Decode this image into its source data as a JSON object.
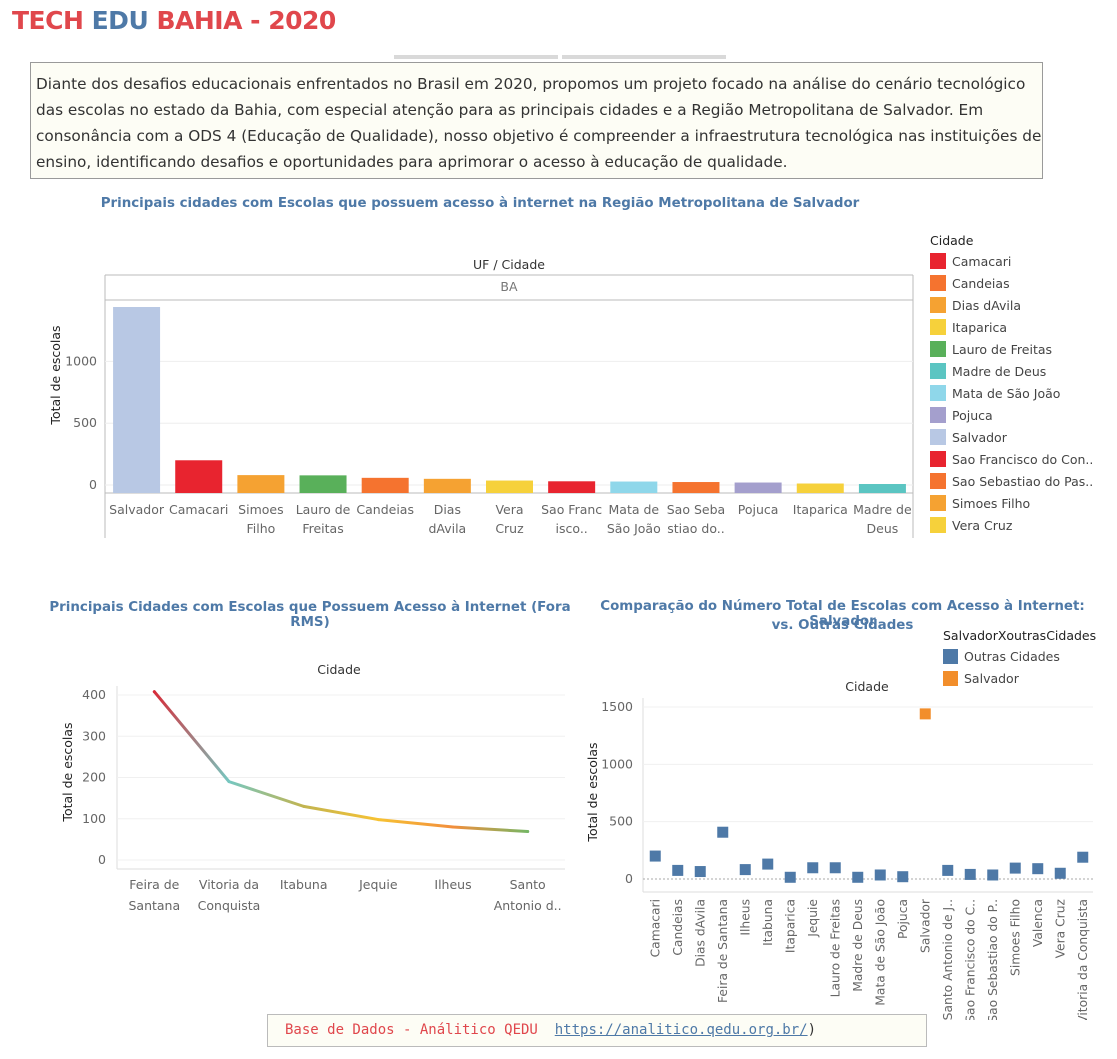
{
  "header": {
    "title_part1": "TECH ",
    "title_part2": "EDU",
    "title_part3": " BAHIA - 2020"
  },
  "intro": {
    "line1": "Diante dos desafios educacionais enfrentados no Brasil em 2020, propomos um projeto focado na análise do cenário tecnológico",
    "line2": "das escolas no estado da Bahia, com especial atenção para as principais cidades e a Região Metropolitana de Salvador. Em",
    "line3": "consonância com a ODS 4 (Educação de Qualidade), nosso objetivo é compreender a infraestrutura tecnológica nas instituições de",
    "line4": "ensino, identificando desafios e oportunidades para aprimorar o acesso à educação de qualidade."
  },
  "chart1_legend": {
    "title": "Cidade",
    "items": [
      {
        "label": "Camacari",
        "color": "#e8242f"
      },
      {
        "label": "Candeias",
        "color": "#f5732f"
      },
      {
        "label": "Dias dAvila",
        "color": "#f5a232"
      },
      {
        "label": "Itaparica",
        "color": "#f6d13b"
      },
      {
        "label": "Lauro de Freitas",
        "color": "#59b05a"
      },
      {
        "label": "Madre de Deus",
        "color": "#5bc5c2"
      },
      {
        "label": "Mata de São João",
        "color": "#8fd7ea"
      },
      {
        "label": "Pojuca",
        "color": "#a49fcd"
      },
      {
        "label": "Salvador",
        "color": "#b8c8e4"
      },
      {
        "label": "Sao Francisco do Con..",
        "color": "#e8242f"
      },
      {
        "label": "Sao Sebastiao do Pas..",
        "color": "#f5732f"
      },
      {
        "label": "Simoes Filho",
        "color": "#f5a232"
      },
      {
        "label": "Vera Cruz",
        "color": "#f6d13b"
      }
    ]
  },
  "chart3_legend": {
    "title": "SalvadorXoutrasCidades",
    "items": [
      {
        "label": "Outras Cidades",
        "color": "#4e79a7"
      },
      {
        "label": "Salvador",
        "color": "#f28e2b"
      }
    ]
  },
  "source": {
    "label": "Base de Dados - Análitico QEDU",
    "link": "https://analitico.qedu.org.br/",
    "close": ")"
  },
  "chart_data": [
    {
      "type": "bar",
      "title": "Principais cidades com Escolas que possuem acesso à internet na Região Metropolitana de Salvador",
      "header_label": "UF / Cidade",
      "panel_label": "BA",
      "ylabel": "Total de escolas",
      "yticks": [
        0,
        500,
        1000
      ],
      "ylim": [
        0,
        1500
      ],
      "grid": true,
      "categories": [
        {
          "line1": "Salvador",
          "line2": ""
        },
        {
          "line1": "Camacari",
          "line2": ""
        },
        {
          "line1": "Simoes",
          "line2": "Filho"
        },
        {
          "line1": "Lauro de",
          "line2": "Freitas"
        },
        {
          "line1": "Candeias",
          "line2": ""
        },
        {
          "line1": "Dias",
          "line2": "dAvila"
        },
        {
          "line1": "Vera",
          "line2": "Cruz"
        },
        {
          "line1": "Sao Franc",
          "line2": "isco.."
        },
        {
          "line1": "Mata de",
          "line2": "São João"
        },
        {
          "line1": "Sao Seba",
          "line2": "stiao do.."
        },
        {
          "line1": "Pojuca",
          "line2": ""
        },
        {
          "line1": "Itaparica",
          "line2": ""
        },
        {
          "line1": "Madre de",
          "line2": "Deus"
        }
      ],
      "values": [
        1440,
        200,
        80,
        78,
        58,
        50,
        36,
        30,
        28,
        24,
        20,
        12,
        8
      ],
      "colors": [
        "#b8c8e4",
        "#e8242f",
        "#f5a232",
        "#59b05a",
        "#f5732f",
        "#f5a232",
        "#f6d13b",
        "#e8242f",
        "#8fd7ea",
        "#f5732f",
        "#a49fcd",
        "#f6d13b",
        "#5bc5c2"
      ]
    },
    {
      "type": "line",
      "title": "Principais Cidades com Escolas que Possuem Acesso à Internet (Fora RMS)",
      "header_label": "Cidade",
      "ylabel": "Total de escolas",
      "yticks": [
        0,
        100,
        200,
        300,
        400
      ],
      "ylim": [
        0,
        415
      ],
      "categories": [
        {
          "line1": "Feira de",
          "line2": "Santana"
        },
        {
          "line1": "Vitoria da",
          "line2": "Conquista"
        },
        {
          "line1": "Itabuna",
          "line2": ""
        },
        {
          "line1": "Jequie",
          "line2": ""
        },
        {
          "line1": "Ilheus",
          "line2": ""
        },
        {
          "line1": "Santo",
          "line2": "Antonio d.."
        }
      ],
      "values": [
        408,
        190,
        130,
        98,
        80,
        69
      ],
      "colors": [
        "#d62d3a",
        "#76c7c0",
        "#c2b450",
        "#f7c233",
        "#f28e3c",
        "#76b665"
      ]
    },
    {
      "type": "scatter",
      "title_line1": "Comparação do Número Total de Escolas com Acesso à Internet: Salvador",
      "title_line2": "vs. Outras Cidades",
      "header_label": "Cidade",
      "ylabel": "Total de escolas",
      "yticks": [
        0,
        500,
        1000,
        1500
      ],
      "ylim": [
        -50,
        1600
      ],
      "categories": [
        "Camacari",
        "Candeias",
        "Dias dAvila",
        "Feira de Santana",
        "Ilheus",
        "Itabuna",
        "Itaparica",
        "Jequie",
        "Lauro de Freitas",
        "Madre de Deus",
        "Mata de São João",
        "Pojuca",
        "Salvador",
        "Santo Antonio de J..",
        "Sao Francisco do C..",
        "Sao Sebastiao do P..",
        "Simoes Filho",
        "Valenca",
        "Vera Cruz",
        "Vitoria da Conquista"
      ],
      "values": [
        200,
        75,
        65,
        408,
        82,
        130,
        15,
        98,
        98,
        15,
        35,
        20,
        1440,
        75,
        40,
        35,
        95,
        90,
        50,
        190
      ],
      "groups": [
        "Outras Cidades",
        "Outras Cidades",
        "Outras Cidades",
        "Outras Cidades",
        "Outras Cidades",
        "Outras Cidades",
        "Outras Cidades",
        "Outras Cidades",
        "Outras Cidades",
        "Outras Cidades",
        "Outras Cidades",
        "Outras Cidades",
        "Salvador",
        "Outras Cidades",
        "Outras Cidades",
        "Outras Cidades",
        "Outras Cidades",
        "Outras Cidades",
        "Outras Cidades",
        "Outras Cidades"
      ]
    }
  ]
}
